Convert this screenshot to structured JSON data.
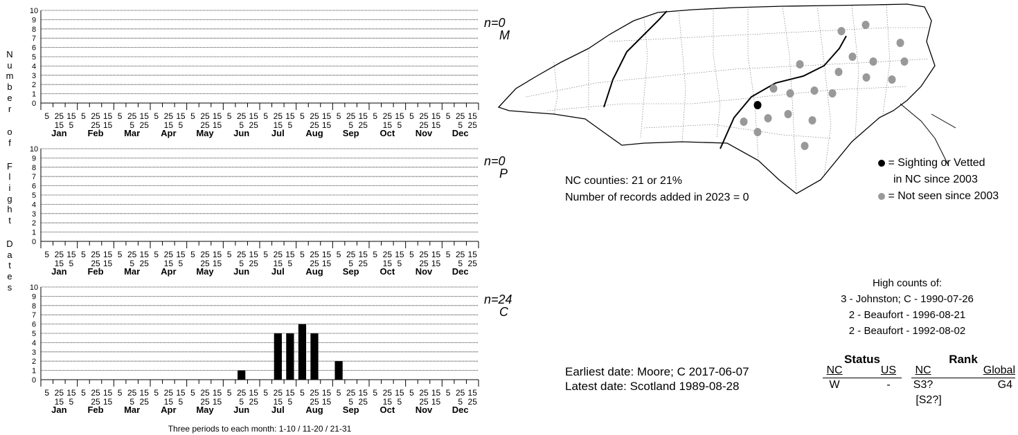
{
  "y_axis_label": "Number of Flight Dates",
  "x_caption": "Three periods to each month: 1-10 / 11-20 / 21-31",
  "months": [
    "Jan",
    "Feb",
    "Mar",
    "Apr",
    "May",
    "Jun",
    "Jul",
    "Aug",
    "Sep",
    "Oct",
    "Nov",
    "Dec"
  ],
  "period_labels_top": [
    "5",
    "25",
    "15",
    "5",
    "25",
    "15",
    "5",
    "25",
    "15",
    "5",
    "25",
    "15",
    "5",
    "25",
    "15",
    "5",
    "25",
    "15",
    "5",
    "25",
    "15",
    "5",
    "25",
    "15",
    "5",
    "25",
    "15",
    "5",
    "25",
    "15",
    "5",
    "25",
    "15",
    "5",
    "25",
    "15"
  ],
  "period_labels_bottom": [
    "15",
    "5",
    "25",
    "15",
    "5",
    "25",
    "15",
    "5",
    "25",
    "15",
    "5",
    "25",
    "15",
    "5",
    "25",
    "15",
    "5",
    "25",
    "15",
    "5",
    "25",
    "15",
    "5",
    "25"
  ],
  "chart_data": [
    {
      "type": "bar",
      "n_label": "n=0",
      "group_label": "M",
      "ylim": [
        0,
        10
      ],
      "yticks": [
        0,
        1,
        2,
        3,
        4,
        5,
        6,
        7,
        8,
        9,
        10
      ],
      "values": [
        0,
        0,
        0,
        0,
        0,
        0,
        0,
        0,
        0,
        0,
        0,
        0,
        0,
        0,
        0,
        0,
        0,
        0,
        0,
        0,
        0,
        0,
        0,
        0,
        0,
        0,
        0,
        0,
        0,
        0,
        0,
        0,
        0,
        0,
        0,
        0
      ]
    },
    {
      "type": "bar",
      "n_label": "n=0",
      "group_label": "P",
      "ylim": [
        0,
        10
      ],
      "yticks": [
        0,
        1,
        2,
        3,
        4,
        5,
        6,
        7,
        8,
        9,
        10
      ],
      "values": [
        0,
        0,
        0,
        0,
        0,
        0,
        0,
        0,
        0,
        0,
        0,
        0,
        0,
        0,
        0,
        0,
        0,
        0,
        0,
        0,
        0,
        0,
        0,
        0,
        0,
        0,
        0,
        0,
        0,
        0,
        0,
        0,
        0,
        0,
        0,
        0
      ]
    },
    {
      "type": "bar",
      "n_label": "n=24",
      "group_label": "C",
      "ylim": [
        0,
        10
      ],
      "yticks": [
        0,
        1,
        2,
        3,
        4,
        5,
        6,
        7,
        8,
        9,
        10
      ],
      "values": [
        0,
        0,
        0,
        0,
        0,
        0,
        0,
        0,
        0,
        0,
        0,
        0,
        0,
        0,
        0,
        0,
        1,
        0,
        0,
        5,
        5,
        6,
        5,
        0,
        2,
        0,
        0,
        0,
        0,
        0,
        0,
        0,
        0,
        0,
        0,
        0
      ]
    }
  ],
  "map": {
    "legend": {
      "black_line1": "= Sighting or Vetted",
      "black_line2": "in NC since 2003",
      "gray": "= Not seen since 2003",
      "black_color": "#000000",
      "gray_color": "#999999"
    },
    "counties_text": "NC counties: 21 or 21%",
    "records_text": "Number of records added in 2023 = 0"
  },
  "high_counts": {
    "title": "High counts of:",
    "items": [
      "3 - Johnston; C - 1990-07-26",
      "2 - Beaufort - 1996-08-21",
      "2 - Beaufort - 1992-08-02"
    ]
  },
  "dates": {
    "earliest": "Earliest date: Moore; C  2017-06-07",
    "latest": "Latest date: Scotland  1989-08-28"
  },
  "status_rank": {
    "status_header": "Status",
    "rank_header": "Rank",
    "nc": "NC",
    "us": "US",
    "nc2": "NC",
    "global": "Global",
    "nc_status": "W",
    "us_status": "-",
    "nc_rank": "S3?",
    "global_rank": "G4",
    "rank_note": "[S2?]"
  }
}
